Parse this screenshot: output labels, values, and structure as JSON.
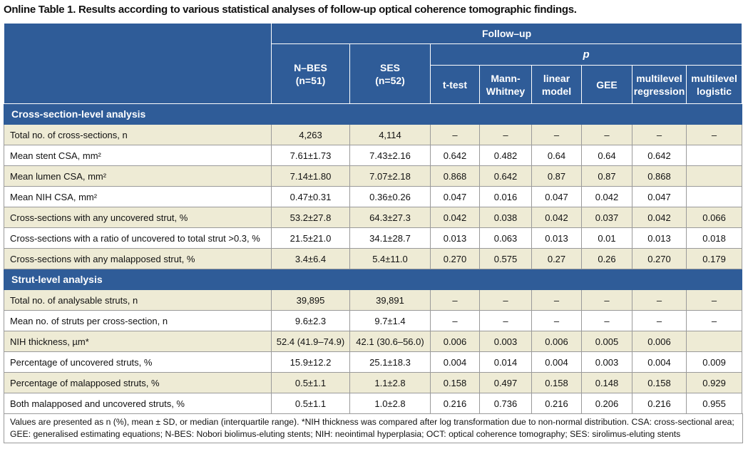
{
  "title": "Online Table 1. Results according to various statistical analyses of follow-up optical coherence tomographic findings.",
  "header": {
    "follow_up": "Follow–up",
    "groups": [
      [
        "N–BES",
        "(n=51)"
      ],
      [
        "SES",
        "(n=52)"
      ]
    ],
    "p": "p",
    "p_columns": [
      [
        "t-test"
      ],
      [
        "Mann-",
        "Whitney"
      ],
      [
        "linear",
        "model"
      ],
      [
        "GEE"
      ],
      [
        "multilevel",
        "regression"
      ],
      [
        "multilevel",
        "logistic"
      ]
    ]
  },
  "sections": [
    {
      "title": "Cross-section-level analysis",
      "rows": [
        [
          "Total no. of cross-sections, n",
          "4,263",
          "4,114",
          "–",
          "–",
          "–",
          "–",
          "–",
          "–"
        ],
        [
          "Mean stent CSA, mm²",
          "7.61±1.73",
          "7.43±2.16",
          "0.642",
          "0.482",
          "0.64",
          "0.64",
          "0.642",
          null
        ],
        [
          "Mean lumen CSA, mm²",
          "7.14±1.80",
          "7.07±2.18",
          "0.868",
          "0.642",
          "0.87",
          "0.87",
          "0.868",
          null
        ],
        [
          "Mean NIH CSA, mm²",
          "0.47±0.31",
          "0.36±0.26",
          "0.047",
          "0.016",
          "0.047",
          "0.042",
          "0.047",
          null
        ],
        [
          "Cross-sections with any uncovered strut, %",
          "53.2±27.8",
          "64.3±27.3",
          "0.042",
          "0.038",
          "0.042",
          "0.037",
          "0.042",
          "0.066"
        ],
        [
          "Cross-sections with a ratio of uncovered to total strut >0.3, %",
          "21.5±21.0",
          "34.1±28.7",
          "0.013",
          "0.063",
          "0.013",
          "0.01",
          "0.013",
          "0.018"
        ],
        [
          "Cross-sections with any malapposed strut, %",
          "3.4±6.4",
          "5.4±11.0",
          "0.270",
          "0.575",
          "0.27",
          "0.26",
          "0.270",
          "0.179"
        ]
      ]
    },
    {
      "title": "Strut-level analysis",
      "rows": [
        [
          "Total no. of analysable struts, n",
          "39,895",
          "39,891",
          "–",
          "–",
          "–",
          "–",
          "–",
          "–"
        ],
        [
          "Mean no. of struts per cross-section, n",
          "9.6±2.3",
          "9.7±1.4",
          "–",
          "–",
          "–",
          "–",
          "–",
          "–"
        ],
        [
          "NIH thickness, µm*",
          "52.4 (41.9–74.9)",
          "42.1 (30.6–56.0)",
          "0.006",
          "0.003",
          "0.006",
          "0.005",
          "0.006",
          null
        ],
        [
          "Percentage of uncovered struts, %",
          "15.9±12.2",
          "25.1±18.3",
          "0.004",
          "0.014",
          "0.004",
          "0.003",
          "0.004",
          "0.009"
        ],
        [
          "Percentage of malapposed struts, %",
          "0.5±1.1",
          "1.1±2.8",
          "0.158",
          "0.497",
          "0.158",
          "0.148",
          "0.158",
          "0.929"
        ],
        [
          "Both malapposed and uncovered struts, %",
          "0.5±1.1",
          "1.0±2.8",
          "0.216",
          "0.736",
          "0.216",
          "0.206",
          "0.216",
          "0.955"
        ]
      ]
    }
  ],
  "footnote": "Values are presented as n (%), mean ± SD, or median (interquartile range). *NIH thickness was compared after log transformation due to non-normal distribution. CSA: cross-sectional area; GEE: generalised estimating equations; N-BES: Nobori biolimus-eluting stents; NIH: neointimal hyperplasia; OCT: optical coherence tomography; SES: sirolimus-eluting stents"
}
